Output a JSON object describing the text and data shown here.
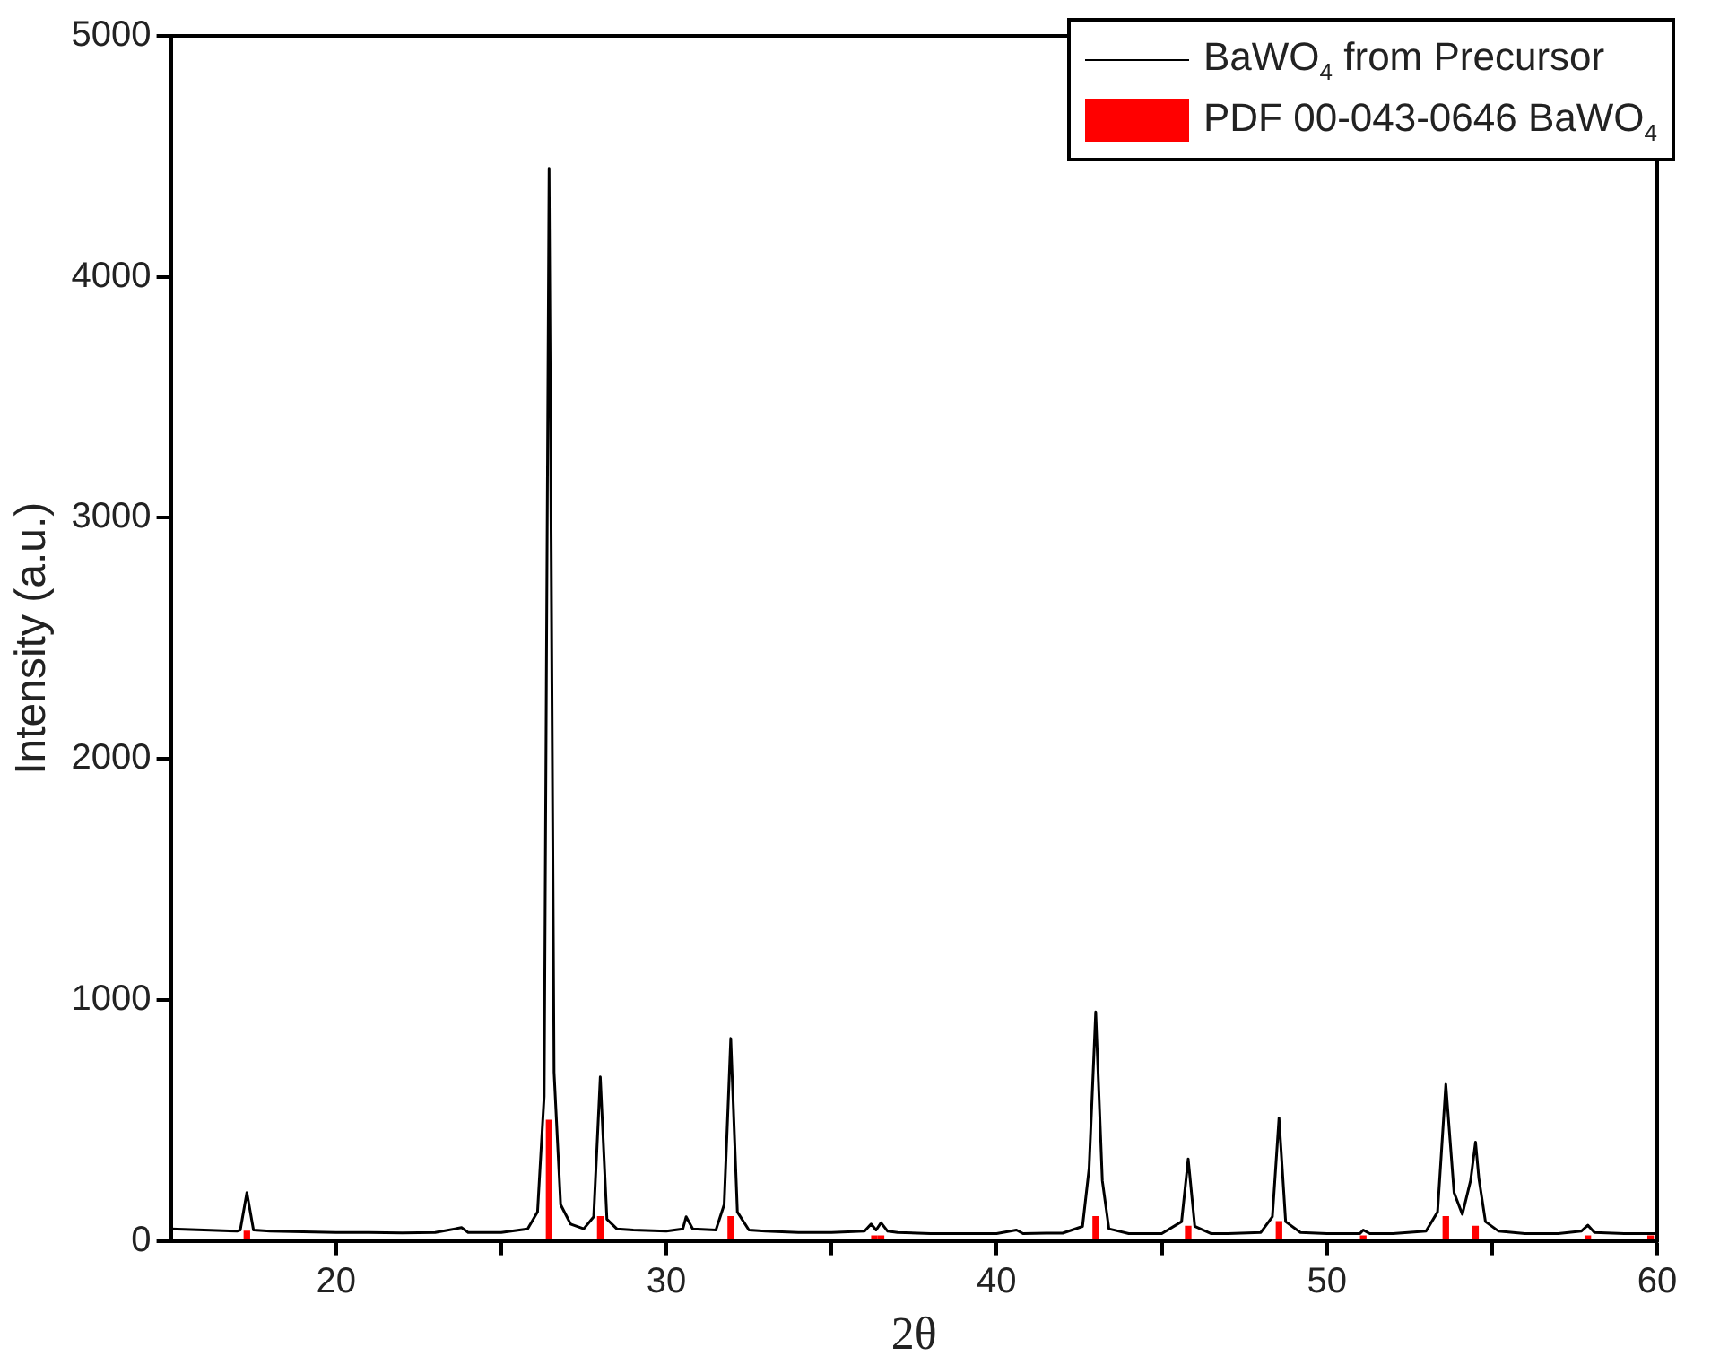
{
  "chart_data": {
    "type": "line",
    "xlabel": "2θ",
    "ylabel": "Intensity (a.u.)",
    "xlim": [
      15,
      60
    ],
    "ylim": [
      0,
      5000
    ],
    "xticks": [
      20,
      {
        "value": 25,
        "label": null
      },
      30,
      {
        "value": 35,
        "label": null
      },
      40,
      {
        "value": 45,
        "label": null
      },
      50,
      {
        "value": 55,
        "label": null
      },
      60
    ],
    "yticks": [
      0,
      1000,
      2000,
      3000,
      4000,
      5000
    ],
    "grid": false,
    "legend": "top right",
    "marker": "none",
    "line_style": "solid",
    "series": [
      {
        "name": "BaWO$_{4}$ from Precursor",
        "color": "#000000",
        "x": [
          15,
          16,
          17,
          17.1,
          17.3,
          17.5,
          18,
          19,
          20,
          21,
          22,
          23,
          23.8,
          24,
          25,
          25.8,
          26.1,
          26.3,
          26.45,
          26.6,
          26.8,
          27.1,
          27.5,
          27.8,
          28.0,
          28.2,
          28.5,
          29,
          30,
          30.5,
          30.6,
          30.8,
          31.5,
          31.75,
          31.95,
          32.15,
          32.5,
          33,
          34,
          35,
          36,
          36.2,
          36.35,
          36.5,
          36.7,
          37,
          38,
          39,
          40,
          40.6,
          40.8,
          41.5,
          42,
          42.6,
          42.8,
          43.0,
          43.2,
          43.4,
          44,
          45,
          45.6,
          45.8,
          46.0,
          46.5,
          47,
          48,
          48.35,
          48.55,
          48.75,
          49.2,
          50,
          51,
          51.1,
          51.3,
          52,
          53,
          53.35,
          53.6,
          53.85,
          54.1,
          54.35,
          54.5,
          54.6,
          54.8,
          55.2,
          56,
          57,
          57.7,
          57.9,
          58.1,
          59,
          60
        ],
        "values": [
          50,
          45,
          40,
          45,
          200,
          45,
          40,
          38,
          35,
          35,
          33,
          35,
          55,
          35,
          35,
          50,
          120,
          600,
          4450,
          700,
          150,
          70,
          50,
          100,
          680,
          90,
          50,
          45,
          40,
          50,
          100,
          50,
          45,
          150,
          840,
          120,
          45,
          40,
          35,
          35,
          40,
          70,
          45,
          75,
          40,
          35,
          30,
          30,
          30,
          45,
          30,
          32,
          32,
          60,
          300,
          950,
          250,
          50,
          30,
          30,
          80,
          340,
          60,
          30,
          30,
          35,
          100,
          510,
          80,
          35,
          30,
          30,
          45,
          30,
          30,
          40,
          120,
          650,
          200,
          110,
          250,
          410,
          260,
          80,
          40,
          30,
          30,
          40,
          65,
          35,
          30,
          30
        ]
      },
      {
        "name": "PDF 00-043-0646 BaWO$_{4}$",
        "type": "bar",
        "color": "#ff0000",
        "x": [
          17.3,
          26.45,
          28.0,
          31.95,
          36.3,
          36.5,
          43.0,
          45.8,
          48.55,
          51.1,
          53.6,
          54.5,
          57.9,
          59.8
        ],
        "values": [
          40,
          500,
          100,
          100,
          20,
          20,
          100,
          60,
          80,
          20,
          100,
          60,
          20,
          20
        ]
      }
    ]
  }
}
